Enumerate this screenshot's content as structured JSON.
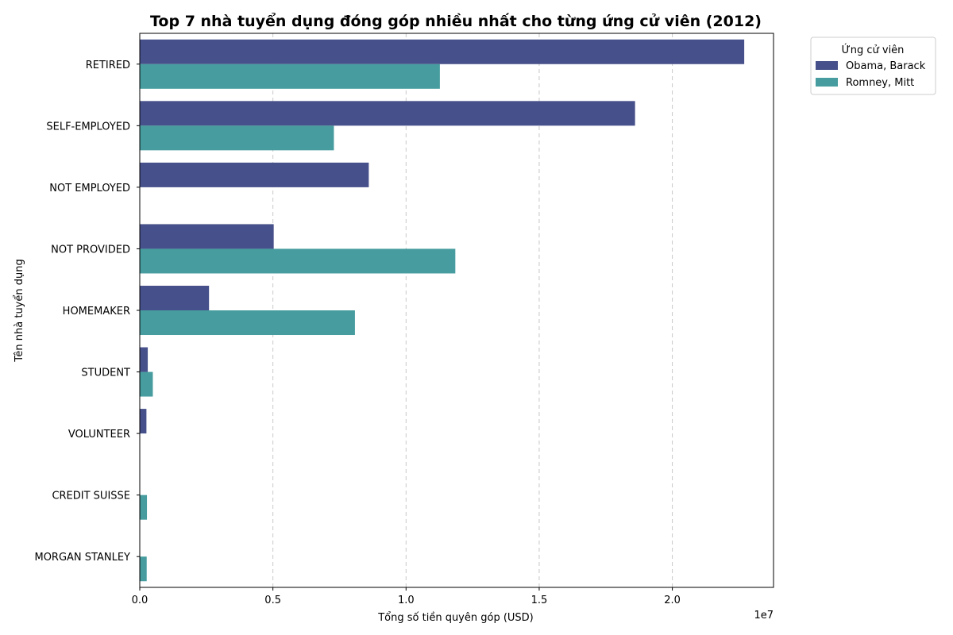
{
  "chart_data": {
    "type": "bar",
    "orientation": "horizontal",
    "title": "Top 7 nhà tuyển dụng đóng góp nhiều nhất cho từng ứng cử viên (2012)",
    "xlabel": "Tổng số tiền quyên góp (USD)",
    "ylabel": "Tên nhà tuyển dụng",
    "x_offset_label": "1e7",
    "xlim": [
      0,
      23800000
    ],
    "x_ticks": [
      0,
      5000000,
      10000000,
      15000000,
      20000000
    ],
    "x_tick_labels": [
      "0.0",
      "0.5",
      "1.0",
      "1.5",
      "2.0"
    ],
    "grid": "x-dashed",
    "legend_position": "outside-top-right",
    "legend_title": "Ứng cử viên",
    "categories": [
      "RETIRED",
      "SELF-EMPLOYED",
      "NOT EMPLOYED",
      "NOT PROVIDED",
      "HOMEMAKER",
      "STUDENT",
      "VOLUNTEER",
      "CREDIT SUISSE",
      "MORGAN STANLEY"
    ],
    "series": [
      {
        "name": "Obama, Barack",
        "color": "#46508a",
        "values": [
          22700000,
          18600000,
          8600000,
          5030000,
          2600000,
          300000,
          250000,
          null,
          null
        ]
      },
      {
        "name": "Romney, Mitt",
        "color": "#469c9e",
        "values": [
          11270000,
          7290000,
          null,
          11850000,
          8080000,
          490000,
          null,
          270000,
          260000
        ]
      }
    ]
  }
}
